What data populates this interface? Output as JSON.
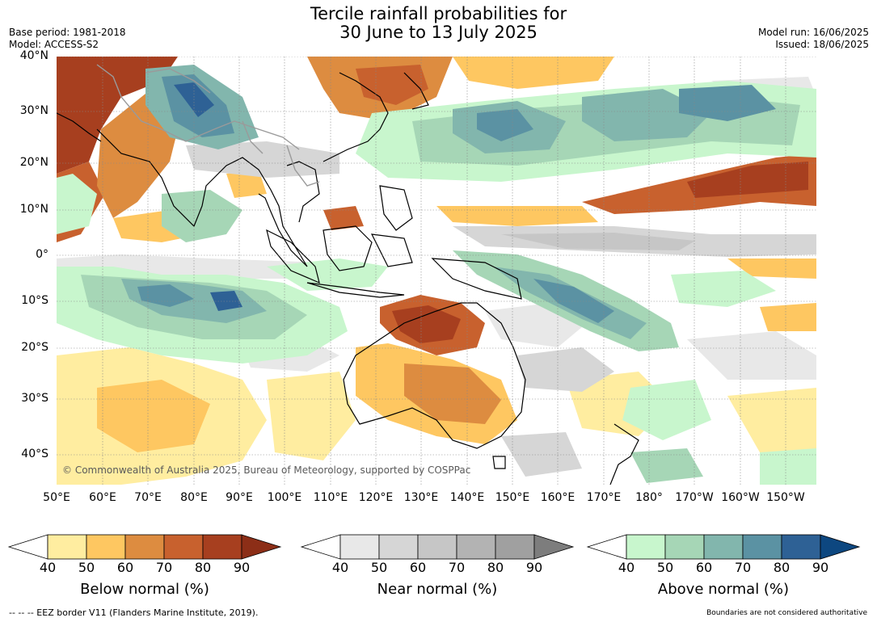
{
  "title": {
    "line1": "Tercile rainfall probabilities for",
    "line2": "30 June to 13 July 2025"
  },
  "meta": {
    "base_period": "Base period: 1981-2018",
    "model": "Model: ACCESS-S2",
    "model_run": "Model run: 16/06/2025",
    "issued": "Issued: 18/06/2025"
  },
  "map": {
    "latitude_labels": [
      "40°N",
      "30°N",
      "20°N",
      "10°N",
      "0°",
      "10°S",
      "20°S",
      "30°S",
      "40°S"
    ],
    "longitude_labels": [
      "50°E",
      "60°E",
      "70°E",
      "80°E",
      "90°E",
      "100°E",
      "110°E",
      "120°E",
      "130°E",
      "140°E",
      "150°E",
      "160°E",
      "170°E",
      "180°",
      "170°W",
      "160°W",
      "150°W"
    ],
    "copyright": "© Commonwealth of Australia 2025, Bureau of Meteorology, supported by COSPPac",
    "colors": {
      "ocean_base": "#ffffff",
      "coastline": "#000000",
      "borders": "#9a9a9a",
      "gridline": "#888888"
    }
  },
  "colorbars": [
    {
      "title": "Below normal (%)",
      "ticks": [
        "40",
        "50",
        "60",
        "70",
        "80",
        "90"
      ],
      "colors": [
        "#ffeda0",
        "#fec761",
        "#dd8c40",
        "#c8612e",
        "#a73f1f",
        "#8c2e17"
      ]
    },
    {
      "title": "Near normal (%)",
      "ticks": [
        "40",
        "50",
        "60",
        "70",
        "80",
        "90"
      ],
      "colors": [
        "#e8e8e8",
        "#d6d6d6",
        "#c6c6c6",
        "#b3b3b3",
        "#a0a0a0",
        "#7d7d7d"
      ]
    },
    {
      "title": "Above normal (%)",
      "ticks": [
        "40",
        "50",
        "60",
        "70",
        "80",
        "90"
      ],
      "colors": [
        "#c8f6cd",
        "#a6d6b6",
        "#82b6ad",
        "#5b92a3",
        "#2e6195",
        "#0d4780"
      ]
    }
  ],
  "footer": {
    "eez_note": "--  --  -- EEZ border V11 (Flanders Marine Institute, 2019).",
    "disclaimer": "Boundaries are not considered authoritative"
  }
}
